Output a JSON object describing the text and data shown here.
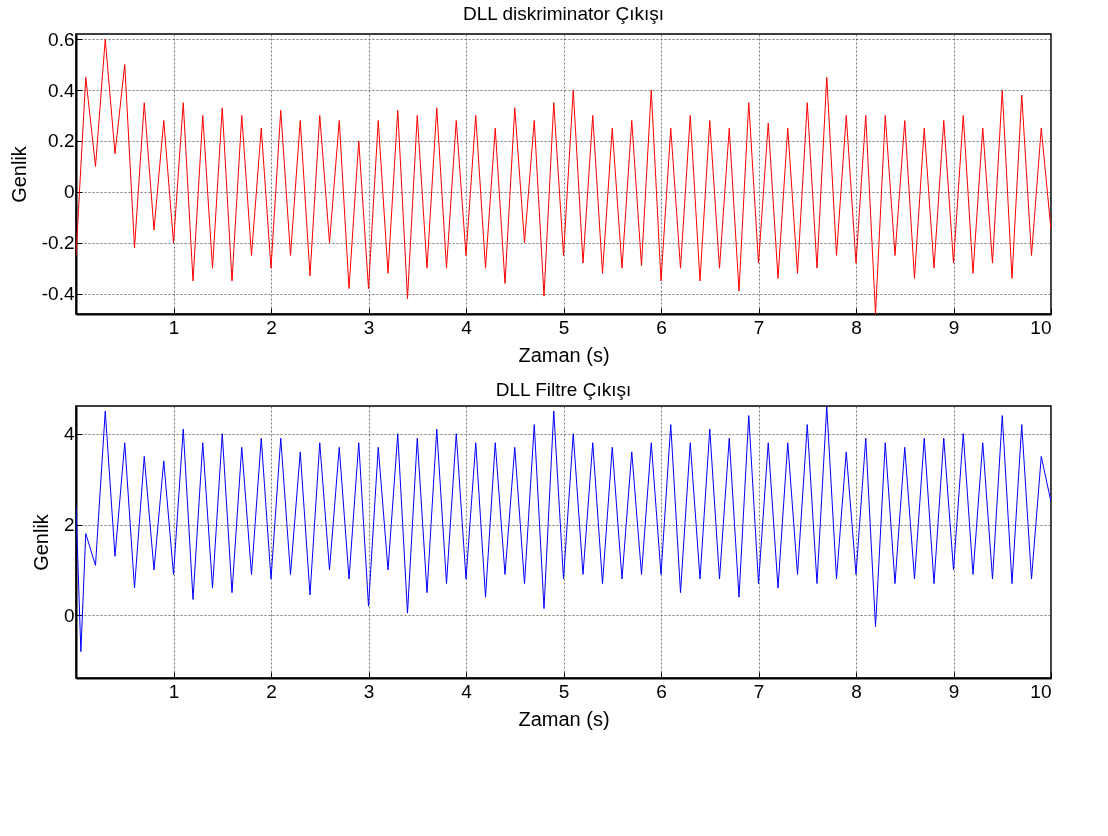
{
  "chart_data": [
    {
      "type": "line",
      "title": "DLL diskriminator Çıkışı",
      "xlabel": "Zaman (s)",
      "ylabel": "Genlik",
      "x": [
        0,
        0.1,
        0.2,
        0.3,
        0.4,
        0.5,
        0.6,
        0.7,
        0.8,
        0.9,
        1,
        1.1,
        1.2,
        1.3,
        1.4,
        1.5,
        1.6,
        1.7,
        1.8,
        1.9,
        2,
        2.1,
        2.2,
        2.3,
        2.4,
        2.5,
        2.6,
        2.7,
        2.8,
        2.9,
        3,
        3.1,
        3.2,
        3.3,
        3.4,
        3.5,
        3.6,
        3.7,
        3.8,
        3.9,
        4,
        4.1,
        4.2,
        4.3,
        4.4,
        4.5,
        4.6,
        4.7,
        4.8,
        4.9,
        5,
        5.1,
        5.2,
        5.3,
        5.4,
        5.5,
        5.6,
        5.7,
        5.8,
        5.9,
        6,
        6.1,
        6.2,
        6.3,
        6.4,
        6.5,
        6.6,
        6.7,
        6.8,
        6.9,
        7,
        7.1,
        7.2,
        7.3,
        7.4,
        7.5,
        7.6,
        7.7,
        7.8,
        7.9,
        8,
        8.1,
        8.2,
        8.3,
        8.4,
        8.5,
        8.6,
        8.7,
        8.8,
        8.9,
        9,
        9.1,
        9.2,
        9.3,
        9.4,
        9.5,
        9.6,
        9.7,
        9.8,
        9.9,
        10
      ],
      "series": [
        {
          "color": "#ff0000",
          "values": [
            -0.25,
            0.45,
            0.1,
            0.6,
            0.15,
            0.5,
            -0.22,
            0.35,
            -0.15,
            0.28,
            -0.2,
            0.35,
            -0.35,
            0.3,
            -0.3,
            0.33,
            -0.35,
            0.3,
            -0.25,
            0.25,
            -0.3,
            0.32,
            -0.25,
            0.28,
            -0.33,
            0.3,
            -0.2,
            0.28,
            -0.38,
            0.2,
            -0.38,
            0.28,
            -0.32,
            0.32,
            -0.42,
            0.3,
            -0.3,
            0.33,
            -0.3,
            0.28,
            -0.25,
            0.3,
            -0.3,
            0.25,
            -0.36,
            0.33,
            -0.2,
            0.28,
            -0.41,
            0.35,
            -0.25,
            0.4,
            -0.28,
            0.3,
            -0.32,
            0.25,
            -0.3,
            0.28,
            -0.29,
            0.4,
            -0.35,
            0.25,
            -0.3,
            0.3,
            -0.35,
            0.28,
            -0.3,
            0.25,
            -0.39,
            0.35,
            -0.28,
            0.27,
            -0.34,
            0.25,
            -0.32,
            0.35,
            -0.3,
            0.45,
            -0.25,
            0.3,
            -0.28,
            0.3,
            -0.48,
            0.3,
            -0.25,
            0.28,
            -0.34,
            0.25,
            -0.3,
            0.28,
            -0.28,
            0.3,
            -0.32,
            0.25,
            -0.28,
            0.4,
            -0.34,
            0.38,
            -0.25,
            0.25,
            -0.15
          ]
        }
      ],
      "xlim": [
        0,
        10
      ],
      "ylim": [
        -0.48,
        0.62
      ],
      "xticks": [
        1,
        2,
        3,
        4,
        5,
        6,
        7,
        8,
        9,
        10
      ],
      "yticks": [
        -0.4,
        -0.2,
        0,
        0.2,
        0.4,
        0.6
      ],
      "grid": true
    },
    {
      "type": "line",
      "title": "DLL Filtre Çıkışı",
      "xlabel": "Zaman (s)",
      "ylabel": "Genlik",
      "x": [
        0,
        0.05,
        0.1,
        0.2,
        0.3,
        0.4,
        0.5,
        0.6,
        0.7,
        0.8,
        0.9,
        1,
        1.1,
        1.2,
        1.3,
        1.4,
        1.5,
        1.6,
        1.7,
        1.8,
        1.9,
        2,
        2.1,
        2.2,
        2.3,
        2.4,
        2.5,
        2.6,
        2.7,
        2.8,
        2.9,
        3,
        3.1,
        3.2,
        3.3,
        3.4,
        3.5,
        3.6,
        3.7,
        3.8,
        3.9,
        4,
        4.1,
        4.2,
        4.3,
        4.4,
        4.5,
        4.6,
        4.7,
        4.8,
        4.9,
        5,
        5.1,
        5.2,
        5.3,
        5.4,
        5.5,
        5.6,
        5.7,
        5.8,
        5.9,
        6,
        6.1,
        6.2,
        6.3,
        6.4,
        6.5,
        6.6,
        6.7,
        6.8,
        6.9,
        7,
        7.1,
        7.2,
        7.3,
        7.4,
        7.5,
        7.6,
        7.7,
        7.8,
        7.9,
        8,
        8.1,
        8.2,
        8.3,
        8.4,
        8.5,
        8.6,
        8.7,
        8.8,
        8.9,
        9,
        9.1,
        9.2,
        9.3,
        9.4,
        9.5,
        9.6,
        9.7,
        9.8,
        9.9,
        10
      ],
      "series": [
        {
          "color": "#0000ff",
          "values": [
            2.4,
            -0.8,
            1.8,
            1.1,
            4.5,
            1.3,
            3.8,
            0.6,
            3.5,
            1.0,
            3.4,
            0.9,
            4.1,
            0.35,
            3.8,
            0.6,
            4.0,
            0.5,
            3.7,
            0.9,
            3.9,
            0.8,
            3.9,
            0.9,
            3.6,
            0.45,
            3.8,
            1.0,
            3.7,
            0.8,
            3.8,
            0.2,
            3.7,
            1.0,
            4.0,
            0.05,
            3.9,
            0.5,
            4.1,
            0.7,
            4.0,
            0.8,
            3.8,
            0.4,
            3.8,
            0.9,
            3.7,
            0.7,
            4.2,
            0.15,
            4.5,
            0.8,
            4.0,
            0.9,
            3.8,
            0.7,
            3.7,
            0.8,
            3.6,
            0.9,
            3.8,
            0.9,
            4.2,
            0.5,
            3.8,
            0.8,
            4.1,
            0.8,
            3.9,
            0.4,
            4.4,
            0.7,
            3.8,
            0.6,
            3.8,
            0.9,
            4.2,
            0.7,
            4.6,
            0.8,
            3.6,
            0.9,
            3.9,
            -0.25,
            3.8,
            0.7,
            3.7,
            0.8,
            3.9,
            0.7,
            3.9,
            1.0,
            4.0,
            0.9,
            3.8,
            0.8,
            4.4,
            0.7,
            4.2,
            0.8,
            3.5,
            2.5
          ]
        }
      ],
      "xlim": [
        0,
        10
      ],
      "ylim": [
        -1.38,
        4.61
      ],
      "xticks": [
        1,
        2,
        3,
        4,
        5,
        6,
        7,
        8,
        9,
        10
      ],
      "yticks": [
        0,
        2,
        4
      ],
      "grid": true
    }
  ]
}
